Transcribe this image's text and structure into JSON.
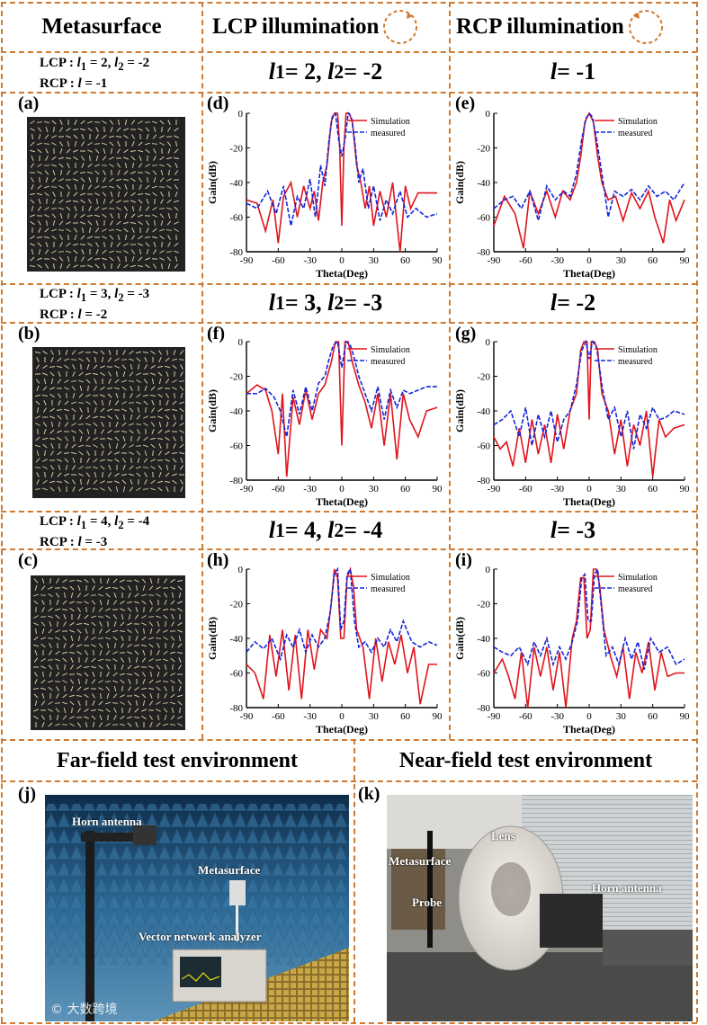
{
  "header": {
    "metasurface": "Metasurface",
    "lcp": "LCP illumination",
    "rcp": "RCP illumination"
  },
  "rows": [
    {
      "config_lcp": "LCP : ",
      "l1_val": "1 = 2, ",
      "l2_val": "2 = -2",
      "config_rcp": "RCP : ",
      "rcp_l": " = -1",
      "lcp_eq": {
        "a": "1",
        "b": " = 2, ",
        "c": "2",
        "d": " = -2"
      },
      "rcp_eq": " = -1",
      "img_label": "(a)",
      "lcp_label": "(d)",
      "rcp_label": "(e)"
    },
    {
      "config_lcp": "LCP : ",
      "l1_val": "1 = 3, ",
      "l2_val": "2 = -3",
      "config_rcp": "RCP : ",
      "rcp_l": " = -2",
      "lcp_eq": {
        "a": "1",
        "b": " = 3, ",
        "c": "2",
        "d": " = -3"
      },
      "rcp_eq": " = -2",
      "img_label": "(b)",
      "lcp_label": "(f)",
      "rcp_label": "(g)"
    },
    {
      "config_lcp": "LCP : ",
      "l1_val": "1 = 4, ",
      "l2_val": "2 = -4",
      "config_rcp": "RCP : ",
      "rcp_l": " = -3",
      "lcp_eq": {
        "a": "1",
        "b": " = 4, ",
        "c": "2",
        "d": " = -4"
      },
      "rcp_eq": " = -3",
      "img_label": "(c)",
      "lcp_label": "(h)",
      "rcp_label": "(i)"
    }
  ],
  "chart_data": [
    {
      "id": "d",
      "type": "line",
      "xlabel": "Theta(Deg)",
      "ylabel": "Gain(dB)",
      "xlim": [
        -90,
        90
      ],
      "ylim": [
        -80,
        0
      ],
      "xticks": [
        -90,
        -60,
        -30,
        0,
        30,
        60,
        90
      ],
      "yticks": [
        0,
        -20,
        -40,
        -60,
        -80
      ],
      "legend": [
        "Simulation",
        "measured"
      ],
      "series": [
        {
          "name": "Simulation",
          "x": [
            -90,
            -80,
            -72,
            -65,
            -60,
            -55,
            -48,
            -42,
            -36,
            -30,
            -26,
            -22,
            -18,
            -14,
            -10,
            -7,
            -4,
            -2,
            0,
            2,
            4,
            7,
            10,
            14,
            18,
            22,
            26,
            30,
            36,
            42,
            48,
            55,
            60,
            65,
            72,
            80,
            90
          ],
          "y": [
            -50,
            -52,
            -68,
            -50,
            -75,
            -48,
            -40,
            -60,
            -42,
            -55,
            -45,
            -62,
            -40,
            -30,
            -5,
            0,
            0,
            -20,
            -65,
            -20,
            0,
            0,
            -5,
            -30,
            -40,
            -55,
            -42,
            -65,
            -45,
            -60,
            -40,
            -80,
            -42,
            -55,
            -46,
            -46,
            -46
          ]
        },
        {
          "name": "measured",
          "x": [
            -90,
            -80,
            -70,
            -62,
            -55,
            -48,
            -42,
            -36,
            -30,
            -25,
            -20,
            -16,
            -12,
            -9,
            -6,
            -3,
            0,
            3,
            6,
            9,
            12,
            16,
            20,
            25,
            30,
            36,
            42,
            48,
            55,
            62,
            70,
            80,
            90
          ],
          "y": [
            -52,
            -55,
            -45,
            -58,
            -42,
            -65,
            -48,
            -55,
            -38,
            -60,
            -30,
            -42,
            -15,
            -2,
            0,
            -15,
            -25,
            -15,
            0,
            -2,
            -15,
            -40,
            -32,
            -55,
            -42,
            -62,
            -50,
            -58,
            -45,
            -60,
            -55,
            -60,
            -58
          ]
        }
      ]
    },
    {
      "id": "e",
      "type": "line",
      "xlabel": "Theta(Deg)",
      "ylabel": "Gain(dB)",
      "xlim": [
        -90,
        90
      ],
      "ylim": [
        -80,
        0
      ],
      "xticks": [
        -90,
        -60,
        -30,
        0,
        30,
        60,
        90
      ],
      "yticks": [
        0,
        -20,
        -40,
        -60,
        -80
      ],
      "legend": [
        "Simulation",
        "measured"
      ],
      "series": [
        {
          "name": "Simulation",
          "x": [
            -90,
            -80,
            -70,
            -62,
            -56,
            -48,
            -40,
            -32,
            -25,
            -18,
            -12,
            -8,
            -4,
            0,
            4,
            8,
            12,
            18,
            25,
            32,
            40,
            48,
            56,
            62,
            70,
            76,
            82,
            90
          ],
          "y": [
            -65,
            -48,
            -58,
            -78,
            -45,
            -58,
            -45,
            -60,
            -45,
            -50,
            -40,
            -25,
            -5,
            0,
            -5,
            -25,
            -40,
            -50,
            -48,
            -62,
            -46,
            -55,
            -45,
            -60,
            -75,
            -50,
            -62,
            -50
          ]
        },
        {
          "name": "measured",
          "x": [
            -90,
            -80,
            -72,
            -64,
            -56,
            -48,
            -40,
            -32,
            -24,
            -18,
            -12,
            -7,
            -3,
            0,
            3,
            7,
            12,
            18,
            24,
            32,
            40,
            48,
            56,
            64,
            72,
            80,
            90
          ],
          "y": [
            -55,
            -50,
            -48,
            -55,
            -45,
            -62,
            -42,
            -50,
            -45,
            -48,
            -35,
            -15,
            -3,
            0,
            -2,
            -15,
            -35,
            -60,
            -45,
            -48,
            -44,
            -50,
            -42,
            -48,
            -45,
            -50,
            -40
          ]
        }
      ]
    },
    {
      "id": "f",
      "type": "line",
      "xlabel": "Theta(Deg)",
      "ylabel": "Gain(dB)",
      "xlim": [
        -90,
        90
      ],
      "ylim": [
        -80,
        0
      ],
      "xticks": [
        -90,
        -60,
        -30,
        0,
        30,
        60,
        90
      ],
      "yticks": [
        0,
        -20,
        -40,
        -60,
        -80
      ],
      "legend": [
        "Simulation",
        "measured"
      ],
      "series": [
        {
          "name": "Simulation",
          "x": [
            -90,
            -80,
            -72,
            -66,
            -60,
            -56,
            -52,
            -46,
            -40,
            -34,
            -28,
            -22,
            -16,
            -10,
            -6,
            -3,
            0,
            3,
            6,
            10,
            16,
            22,
            28,
            34,
            40,
            46,
            52,
            58,
            64,
            72,
            80,
            90
          ],
          "y": [
            -30,
            -25,
            -28,
            -40,
            -65,
            -30,
            -78,
            -32,
            -48,
            -28,
            -45,
            -30,
            -25,
            -12,
            0,
            0,
            -60,
            0,
            0,
            -12,
            -25,
            -35,
            -50,
            -30,
            -60,
            -30,
            -68,
            -30,
            -45,
            -55,
            -40,
            -38
          ]
        },
        {
          "name": "measured",
          "x": [
            -90,
            -80,
            -72,
            -64,
            -58,
            -52,
            -46,
            -40,
            -34,
            -28,
            -22,
            -16,
            -12,
            -8,
            -4,
            0,
            4,
            8,
            12,
            16,
            22,
            28,
            34,
            40,
            46,
            52,
            58,
            64,
            72,
            80,
            90
          ],
          "y": [
            -30,
            -30,
            -27,
            -32,
            -40,
            -55,
            -28,
            -42,
            -26,
            -40,
            -24,
            -20,
            -10,
            -2,
            0,
            -15,
            0,
            -2,
            -10,
            -20,
            -30,
            -40,
            -26,
            -45,
            -28,
            -38,
            -28,
            -30,
            -28,
            -26,
            -26
          ]
        }
      ]
    },
    {
      "id": "g",
      "type": "line",
      "xlabel": "Theta(Deg)",
      "ylabel": "Gain(dB)",
      "xlim": [
        -90,
        90
      ],
      "ylim": [
        -80,
        0
      ],
      "xticks": [
        -90,
        -60,
        -30,
        0,
        30,
        60,
        90
      ],
      "yticks": [
        0,
        -20,
        -40,
        -60,
        -80
      ],
      "legend": [
        "Simulation",
        "measured"
      ],
      "series": [
        {
          "name": "Simulation",
          "x": [
            -90,
            -84,
            -78,
            -72,
            -66,
            -60,
            -54,
            -48,
            -42,
            -36,
            -30,
            -24,
            -18,
            -12,
            -8,
            -5,
            -2,
            0,
            2,
            5,
            8,
            12,
            18,
            24,
            30,
            36,
            42,
            48,
            54,
            60,
            66,
            72,
            80,
            90
          ],
          "y": [
            -55,
            -62,
            -58,
            -72,
            -50,
            -70,
            -45,
            -65,
            -48,
            -70,
            -42,
            -62,
            -40,
            -30,
            -5,
            0,
            0,
            -45,
            0,
            0,
            -5,
            -30,
            -40,
            -65,
            -45,
            -72,
            -48,
            -60,
            -40,
            -78,
            -45,
            -55,
            -50,
            -48
          ]
        },
        {
          "name": "measured",
          "x": [
            -90,
            -82,
            -74,
            -66,
            -60,
            -54,
            -48,
            -42,
            -36,
            -30,
            -24,
            -18,
            -12,
            -7,
            -3,
            0,
            3,
            7,
            12,
            18,
            24,
            30,
            36,
            42,
            48,
            54,
            60,
            66,
            72,
            80,
            90
          ],
          "y": [
            -48,
            -45,
            -40,
            -55,
            -38,
            -60,
            -42,
            -55,
            -40,
            -58,
            -45,
            -40,
            -25,
            -5,
            0,
            -10,
            0,
            -3,
            -25,
            -45,
            -38,
            -55,
            -40,
            -62,
            -42,
            -50,
            -38,
            -45,
            -44,
            -40,
            -42
          ]
        }
      ]
    },
    {
      "id": "h",
      "type": "line",
      "xlabel": "Theta(Deg)",
      "ylabel": "Gain(dB)",
      "xlim": [
        -90,
        90
      ],
      "ylim": [
        -80,
        0
      ],
      "xticks": [
        -90,
        -60,
        -30,
        0,
        30,
        60,
        90
      ],
      "yticks": [
        0,
        -20,
        -40,
        -60,
        -80
      ],
      "legend": [
        "Simulation",
        "measured"
      ],
      "series": [
        {
          "name": "Simulation",
          "x": [
            -90,
            -82,
            -74,
            -68,
            -62,
            -56,
            -50,
            -44,
            -38,
            -32,
            -26,
            -20,
            -14,
            -10,
            -7,
            -4,
            -1,
            2,
            5,
            8,
            11,
            14,
            20,
            26,
            32,
            38,
            44,
            50,
            56,
            62,
            68,
            74,
            82,
            90
          ],
          "y": [
            -55,
            -60,
            -75,
            -38,
            -62,
            -35,
            -70,
            -38,
            -75,
            -35,
            -58,
            -35,
            -40,
            -20,
            0,
            -5,
            -40,
            -40,
            -5,
            0,
            -10,
            -35,
            -45,
            -75,
            -40,
            -65,
            -42,
            -55,
            -38,
            -60,
            -45,
            -78,
            -55,
            -55
          ]
        },
        {
          "name": "measured",
          "x": [
            -90,
            -82,
            -74,
            -66,
            -58,
            -52,
            -46,
            -40,
            -34,
            -28,
            -22,
            -16,
            -11,
            -7,
            -4,
            -1,
            2,
            5,
            8,
            12,
            16,
            22,
            28,
            34,
            40,
            46,
            52,
            58,
            66,
            74,
            82,
            90
          ],
          "y": [
            -48,
            -42,
            -46,
            -40,
            -52,
            -38,
            -45,
            -35,
            -48,
            -38,
            -45,
            -40,
            -25,
            -3,
            0,
            -35,
            -30,
            -3,
            0,
            -30,
            -45,
            -42,
            -48,
            -40,
            -45,
            -35,
            -42,
            -30,
            -42,
            -45,
            -42,
            -44
          ]
        }
      ]
    },
    {
      "id": "i",
      "type": "line",
      "xlabel": "Theta(Deg)",
      "ylabel": "Gain(dB)",
      "xlim": [
        -90,
        90
      ],
      "ylim": [
        -80,
        0
      ],
      "xticks": [
        -90,
        -60,
        -30,
        0,
        30,
        60,
        90
      ],
      "yticks": [
        0,
        -20,
        -40,
        -60,
        -80
      ],
      "legend": [
        "Simulation",
        "measured"
      ],
      "series": [
        {
          "name": "Simulation",
          "x": [
            -90,
            -82,
            -76,
            -70,
            -64,
            -58,
            -52,
            -46,
            -40,
            -34,
            -28,
            -22,
            -16,
            -12,
            -8,
            -5,
            -2,
            1,
            4,
            7,
            10,
            14,
            20,
            26,
            32,
            38,
            44,
            50,
            56,
            62,
            68,
            74,
            82,
            90
          ],
          "y": [
            -60,
            -52,
            -62,
            -75,
            -48,
            -80,
            -45,
            -62,
            -45,
            -70,
            -48,
            -80,
            -40,
            -30,
            -5,
            -5,
            -40,
            -35,
            0,
            0,
            -10,
            -35,
            -50,
            -62,
            -45,
            -75,
            -48,
            -60,
            -42,
            -70,
            -48,
            -62,
            -60,
            -60
          ]
        },
        {
          "name": "measured",
          "x": [
            -90,
            -82,
            -74,
            -66,
            -58,
            -52,
            -46,
            -40,
            -34,
            -28,
            -22,
            -16,
            -11,
            -7,
            -4,
            -1,
            2,
            5,
            8,
            12,
            16,
            22,
            28,
            34,
            40,
            46,
            52,
            58,
            66,
            74,
            82,
            90
          ],
          "y": [
            -45,
            -48,
            -50,
            -45,
            -55,
            -42,
            -50,
            -40,
            -55,
            -45,
            -52,
            -42,
            -30,
            -5,
            -3,
            -30,
            -30,
            -3,
            0,
            -25,
            -50,
            -45,
            -55,
            -40,
            -52,
            -42,
            -58,
            -40,
            -48,
            -45,
            -55,
            -52
          ]
        }
      ]
    }
  ],
  "bottom": {
    "far_title": "Far-field test environment",
    "near_title": "Near-field test environment",
    "j_label": "(j)",
    "k_label": "(k)",
    "far_labels": {
      "horn": "Horn antenna",
      "meta": "Metasurface",
      "vna": "Vector network analyzer"
    },
    "near_labels": {
      "lens": "Lens",
      "meta": "Metasurface",
      "probe": "Probe",
      "horn": "Horn antenna"
    },
    "watermark": "© 大数跨境"
  },
  "colors": {
    "frame": "#d07a30",
    "sim": "#e0141c",
    "meas": "#1626d8"
  }
}
